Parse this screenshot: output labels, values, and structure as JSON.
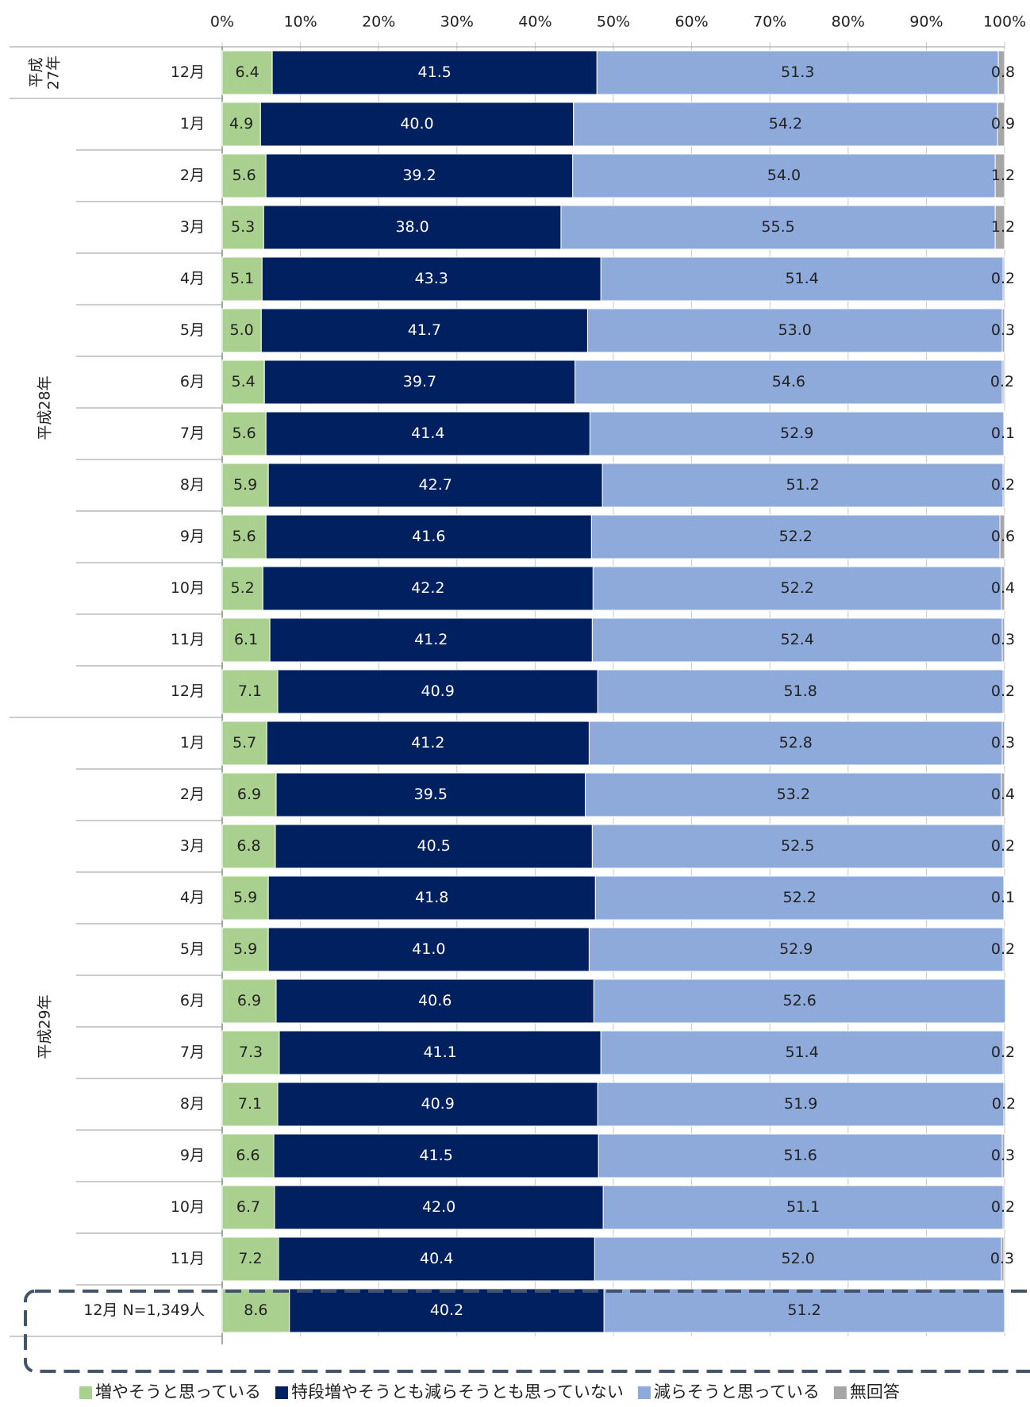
{
  "chart_data": {
    "type": "stacked-bar-horizontal",
    "groups": [
      {
        "label": [
          "平成",
          "27年"
        ],
        "categories": [
          "12月"
        ]
      },
      {
        "label": [
          "平成28年"
        ],
        "categories": [
          "1月",
          "2月",
          "3月",
          "4月",
          "5月",
          "6月",
          "7月",
          "8月",
          "9月",
          "10月",
          "11月",
          "12月"
        ]
      },
      {
        "label": [
          "平成29年"
        ],
        "categories": [
          "1月",
          "2月",
          "3月",
          "4月",
          "5月",
          "6月",
          "7月",
          "8月",
          "9月",
          "10月",
          "11月",
          "12月 N=1,349人"
        ]
      }
    ],
    "xlim": [
      0,
      100
    ],
    "xticks": [
      {
        "value": 0,
        "label": "0%"
      },
      {
        "value": 10,
        "label": "10%"
      },
      {
        "value": 20,
        "label": "20%"
      },
      {
        "value": 30,
        "label": "30%"
      },
      {
        "value": 40,
        "label": "40%"
      },
      {
        "value": 50,
        "label": "50%"
      },
      {
        "value": 60,
        "label": "60%"
      },
      {
        "value": 70,
        "label": "70%"
      },
      {
        "value": 80,
        "label": "80%"
      },
      {
        "value": 90,
        "label": "90%"
      },
      {
        "value": 100,
        "label": "100%"
      }
    ],
    "series": [
      {
        "name": "増やそうと思っている",
        "color": "#a9d08e",
        "values": [
          6.4,
          4.9,
          5.6,
          5.3,
          5.1,
          5.0,
          5.4,
          5.6,
          5.9,
          5.6,
          5.2,
          6.1,
          7.1,
          5.7,
          6.9,
          6.8,
          5.9,
          5.9,
          6.9,
          7.3,
          7.1,
          6.6,
          6.7,
          7.2,
          8.6
        ],
        "value_labels": [
          "6.4",
          "4.9",
          "5.6",
          "5.3",
          "5.1",
          "5.0",
          "5.4",
          "5.6",
          "5.9",
          "5.6",
          "5.2",
          "6.1",
          "7.1",
          "5.7",
          "6.9",
          "6.8",
          "5.9",
          "5.9",
          "6.9",
          "7.3",
          "7.1",
          "6.6",
          "6.7",
          "7.2",
          "8.6"
        ]
      },
      {
        "name": "特段増やそうとも減らそうとも思っていない",
        "color": "#002060",
        "values": [
          41.5,
          40.0,
          39.2,
          38.0,
          43.3,
          41.7,
          39.7,
          41.4,
          42.7,
          41.6,
          42.2,
          41.2,
          40.9,
          41.2,
          39.5,
          40.5,
          41.8,
          41.0,
          40.6,
          41.1,
          40.9,
          41.5,
          42.0,
          40.4,
          40.2
        ],
        "value_labels": [
          "41.5",
          "40.0",
          "39.2",
          "38.0",
          "43.3",
          "41.7",
          "39.7",
          "41.4",
          "42.7",
          "41.6",
          "42.2",
          "41.2",
          "40.9",
          "41.2",
          "39.5",
          "40.5",
          "41.8",
          "41.0",
          "40.6",
          "41.1",
          "40.9",
          "41.5",
          "42.0",
          "40.4",
          "40.2"
        ]
      },
      {
        "name": "減らそうと思っている",
        "color": "#8eaadb",
        "values": [
          51.3,
          54.2,
          54.0,
          55.5,
          51.4,
          53.0,
          54.6,
          52.9,
          51.2,
          52.2,
          52.2,
          52.4,
          51.8,
          52.8,
          53.2,
          52.5,
          52.2,
          52.9,
          52.6,
          51.4,
          51.9,
          51.6,
          51.1,
          52.0,
          51.2
        ],
        "value_labels": [
          "51.3",
          "54.2",
          "54.0",
          "55.5",
          "51.4",
          "53.0",
          "54.6",
          "52.9",
          "51.2",
          "52.2",
          "52.2",
          "52.4",
          "51.8",
          "52.8",
          "53.2",
          "52.5",
          "52.2",
          "52.9",
          "52.6",
          "51.4",
          "51.9",
          "51.6",
          "51.1",
          "52.0",
          "51.2"
        ]
      },
      {
        "name": "無回答",
        "color": "#a6a6a6",
        "values": [
          0.8,
          0.9,
          1.2,
          1.2,
          0.2,
          0.3,
          0.2,
          0.1,
          0.2,
          0.6,
          0.4,
          0.3,
          0.2,
          0.3,
          0.4,
          0.2,
          0.1,
          0.2,
          null,
          0.2,
          0.2,
          0.3,
          0.2,
          0.3,
          null
        ],
        "value_labels": [
          "0.8",
          "0.9",
          "1.2",
          "1.2",
          "0.2",
          "0.3",
          "0.2",
          "0.1",
          "0.2",
          "0.6",
          "0.4",
          "0.3",
          "0.2",
          "0.3",
          "0.4",
          "0.2",
          "0.1",
          "0.2",
          null,
          "0.2",
          "0.2",
          "0.3",
          "0.2",
          "0.3",
          null
        ]
      }
    ]
  }
}
